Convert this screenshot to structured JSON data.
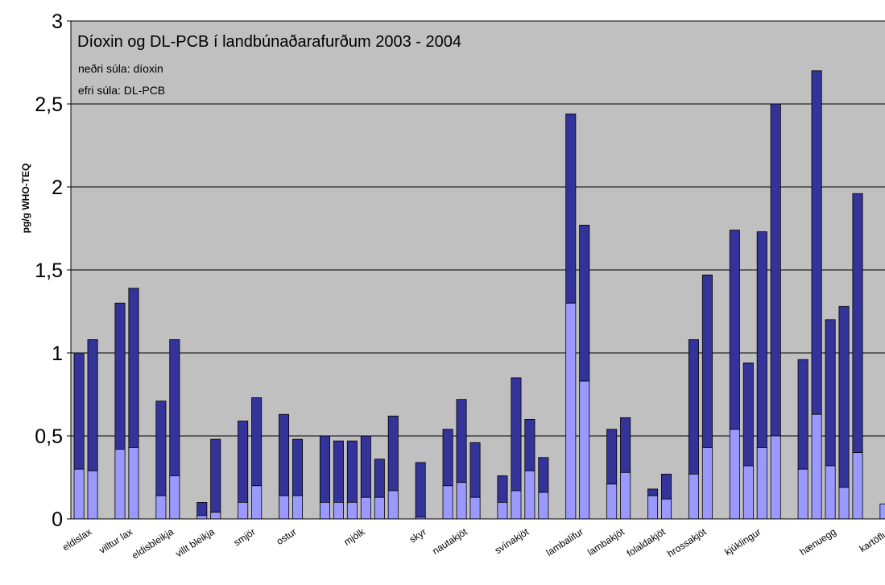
{
  "chart_data": {
    "type": "bar",
    "stacked": true,
    "title": "Díoxin og DL-PCB í landbúnaðarafurðum 2003 - 2004",
    "legend": [
      {
        "text": "neðri súla: díoxin",
        "color": "#9999ff"
      },
      {
        "text": "efri súla: DL-PCB",
        "color": "#333399"
      }
    ],
    "ylabel": "pg/g WHO-TEQ",
    "ylim": [
      0,
      3
    ],
    "yticks": [
      "0",
      "0,5",
      "1",
      "1,5",
      "2",
      "2,5",
      "3"
    ],
    "grid": true,
    "background": "#c0c0c0",
    "colors": {
      "dioxin": "#9999ff",
      "pcb": "#333399",
      "outline": "#000000"
    },
    "groups": [
      {
        "label": "eldislax",
        "bars": [
          [
            0.3,
            1.0
          ],
          [
            0.29,
            1.08
          ]
        ]
      },
      {
        "label": "villtur lax",
        "bars": [
          [
            0.42,
            1.3
          ],
          [
            0.43,
            1.39
          ]
        ]
      },
      {
        "label": "eldisbleikja",
        "bars": [
          [
            0.14,
            0.71
          ],
          [
            0.26,
            1.08
          ]
        ]
      },
      {
        "label": "villt bleikja",
        "bars": [
          [
            0.02,
            0.1
          ],
          [
            0.04,
            0.48
          ]
        ]
      },
      {
        "label": "smjör",
        "bars": [
          [
            0.1,
            0.59
          ],
          [
            0.2,
            0.73
          ]
        ]
      },
      {
        "label": "ostur",
        "bars": [
          [
            0.14,
            0.63
          ],
          [
            0.14,
            0.48
          ]
        ]
      },
      {
        "label": "mjólk",
        "bars": [
          [
            0.1,
            0.5
          ],
          [
            0.1,
            0.47
          ],
          [
            0.1,
            0.47
          ],
          [
            0.13,
            0.5
          ],
          [
            0.13,
            0.36
          ],
          [
            0.17,
            0.62
          ]
        ]
      },
      {
        "label": "skyr",
        "bars": [
          [
            0.01,
            0.34
          ]
        ]
      },
      {
        "label": "nautakjöt",
        "bars": [
          [
            0.2,
            0.54
          ],
          [
            0.22,
            0.72
          ],
          [
            0.13,
            0.46
          ]
        ]
      },
      {
        "label": "svínakjöt",
        "bars": [
          [
            0.1,
            0.26
          ],
          [
            0.17,
            0.85
          ],
          [
            0.29,
            0.6
          ],
          [
            0.16,
            0.37
          ]
        ]
      },
      {
        "label": "lambalifur",
        "bars": [
          [
            1.3,
            2.44
          ],
          [
            0.83,
            1.77
          ]
        ]
      },
      {
        "label": "lambakjöt",
        "bars": [
          [
            0.21,
            0.54
          ],
          [
            0.28,
            0.61
          ]
        ]
      },
      {
        "label": "folaldakjöt",
        "bars": [
          [
            0.14,
            0.18
          ],
          [
            0.12,
            0.27
          ]
        ]
      },
      {
        "label": "hrossakjöt",
        "bars": [
          [
            0.27,
            1.08
          ],
          [
            0.43,
            1.47
          ]
        ]
      },
      {
        "label": "kjúklingur",
        "bars": [
          [
            0.54,
            1.74
          ],
          [
            0.32,
            0.94
          ],
          [
            0.43,
            1.73
          ],
          [
            0.5,
            2.5
          ]
        ]
      },
      {
        "label": "hænuegg",
        "bars": [
          [
            0.3,
            0.96
          ],
          [
            0.63,
            2.7
          ],
          [
            0.32,
            1.2
          ],
          [
            0.19,
            1.28
          ],
          [
            0.4,
            1.96
          ]
        ]
      },
      {
        "label": "kartöflur",
        "bars": [
          [
            0.09,
            0.09
          ]
        ]
      }
    ]
  }
}
